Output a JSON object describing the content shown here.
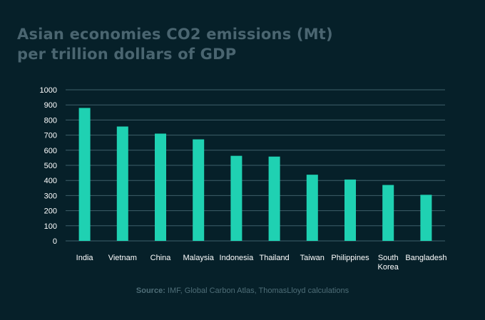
{
  "title_line1": "Asian economies CO2 emissions (Mt)",
  "title_line2": "per trillion dollars of GDP",
  "source_label": "Source:",
  "source_text": " IMF, Global Carbon Atlas, ThomasLloyd calculations",
  "colors": {
    "background": "#062029",
    "bar": "#1fd1b2",
    "grid": "#3f5f6a",
    "title": "#4a6570"
  },
  "chart_data": {
    "type": "bar",
    "title": "Asian economies CO2 emissions (Mt) per trillion dollars of GDP",
    "xlabel": "",
    "ylabel": "",
    "ylim": [
      0,
      1000
    ],
    "yticks": [
      0,
      100,
      200,
      300,
      400,
      500,
      600,
      700,
      800,
      900,
      1000
    ],
    "grid": true,
    "categories": [
      [
        "India"
      ],
      [
        "Vietnam"
      ],
      [
        "China"
      ],
      [
        "Malaysia"
      ],
      [
        "Indonesia"
      ],
      [
        "Thailand"
      ],
      [
        "Taiwan"
      ],
      [
        "Philippines"
      ],
      [
        "South",
        "Korea"
      ],
      [
        "Bangladesh"
      ]
    ],
    "values": [
      880,
      757,
      710,
      672,
      563,
      558,
      438,
      406,
      370,
      305
    ]
  }
}
